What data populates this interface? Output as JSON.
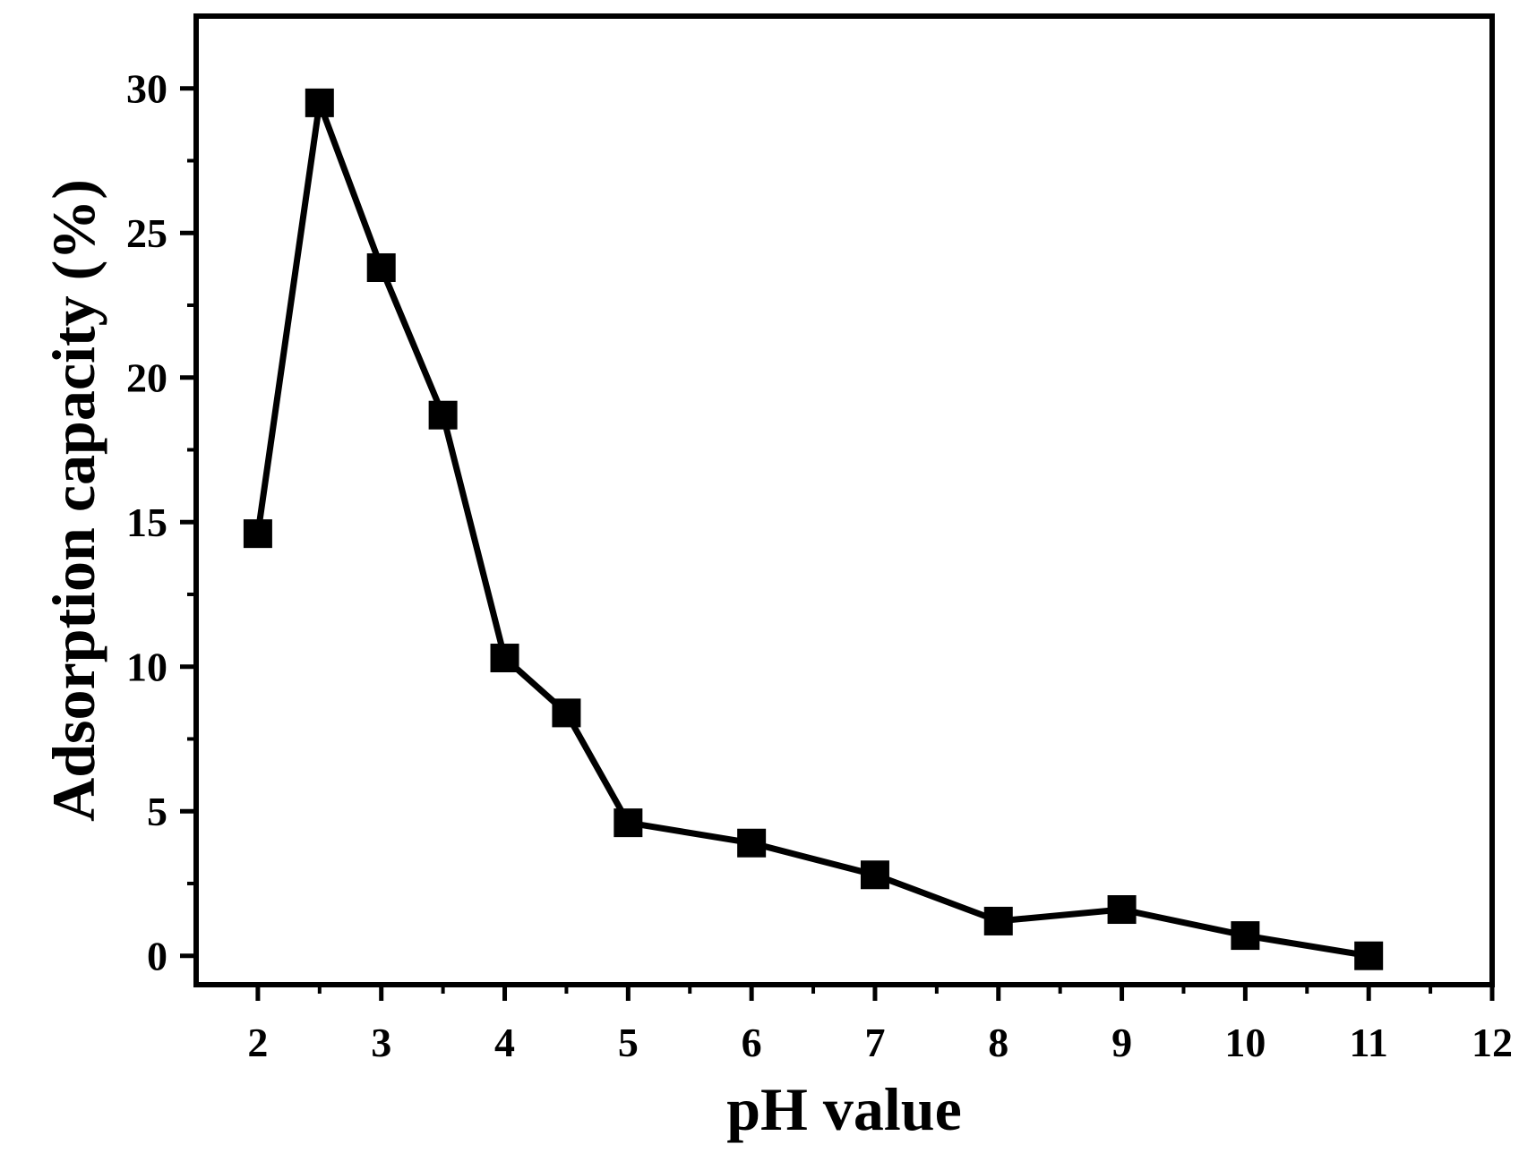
{
  "chart_data": {
    "type": "line",
    "xlabel": "pH value",
    "ylabel": "Adsorption capacity (%)",
    "xlim": [
      1.5,
      12
    ],
    "ylim": [
      -1,
      32.5
    ],
    "x_ticks": [
      2,
      3,
      4,
      5,
      6,
      7,
      8,
      9,
      10,
      11,
      12
    ],
    "x_tick_labels": [
      "2",
      "3",
      "4",
      "5",
      "6",
      "7",
      "8",
      "9",
      "10",
      "11",
      "12"
    ],
    "y_ticks": [
      0,
      5,
      10,
      15,
      20,
      25,
      30
    ],
    "y_tick_labels": [
      "0",
      "5",
      "10",
      "15",
      "20",
      "25",
      "30"
    ],
    "grid": false,
    "marker": "square",
    "series": [
      {
        "x": [
          2,
          2.5,
          3,
          3.5,
          4,
          4.5,
          5,
          6,
          7,
          8,
          9,
          10,
          11
        ],
        "y": [
          14.6,
          29.5,
          23.8,
          18.7,
          10.3,
          8.4,
          4.6,
          3.9,
          2.8,
          1.2,
          1.6,
          0.7,
          0.0
        ]
      }
    ],
    "colors": {
      "line": "#000000",
      "marker": "#000000",
      "axis": "#000000"
    }
  }
}
